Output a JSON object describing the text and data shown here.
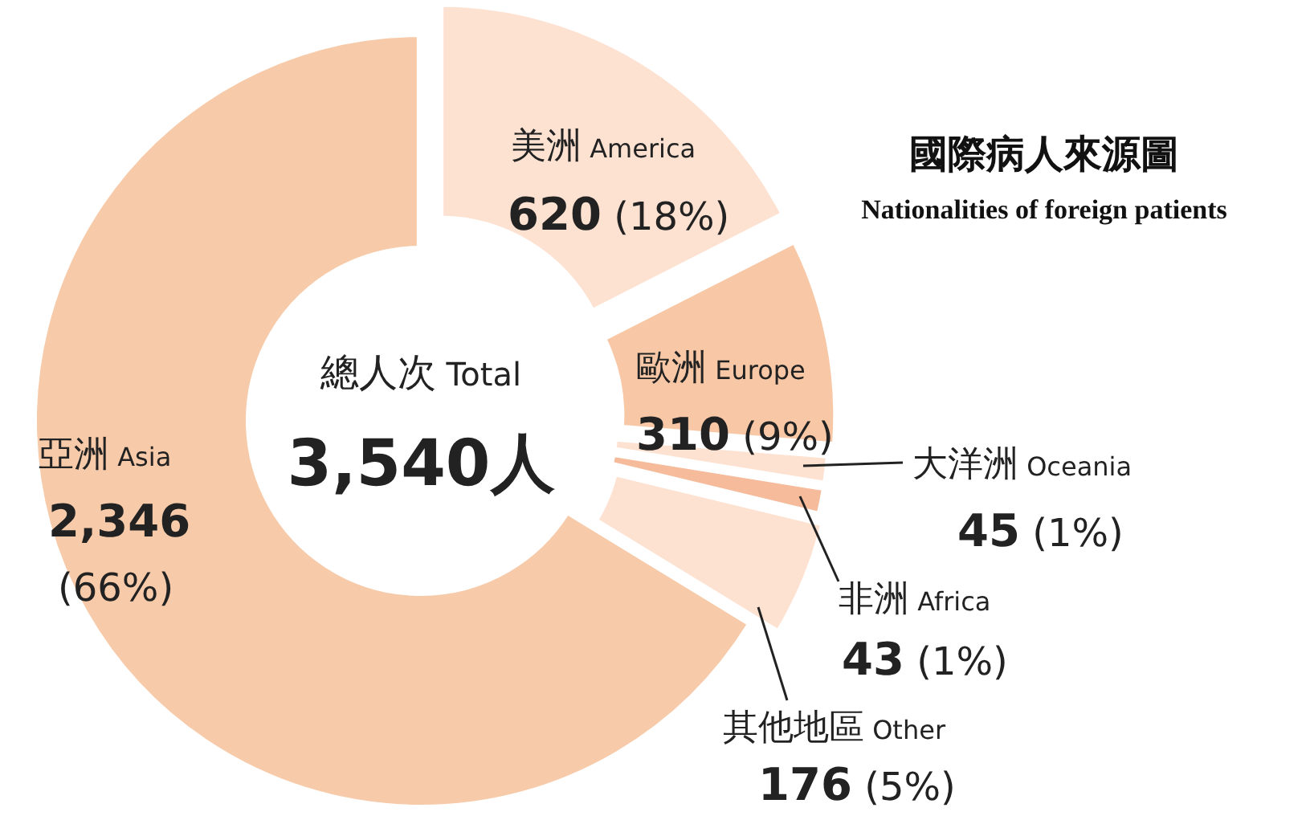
{
  "chart_data": {
    "type": "donut",
    "title": "國際病人來源圖",
    "subtitle": "Nationalities of foreign patients",
    "categories": [
      "美洲 America",
      "歐洲 Europe",
      "大洋洲 Oceania",
      "非洲 Africa",
      "其他地區 Other",
      "亞洲 Asia"
    ],
    "values": [
      620,
      310,
      45,
      43,
      176,
      2346
    ],
    "colors": [
      "#fde2d2",
      "#f8c8a6",
      "#fde2d2",
      "#f5bb9a",
      "#fde2d2",
      "#f7caa9"
    ],
    "value_labels": [
      "620 (18%)",
      "310 (9%)",
      "45 (1%)",
      "43 (1%)",
      "176 (5%)",
      "2,346 (66%)"
    ],
    "annotations": [
      "總人次 Total",
      "3,540人"
    ]
  }
}
